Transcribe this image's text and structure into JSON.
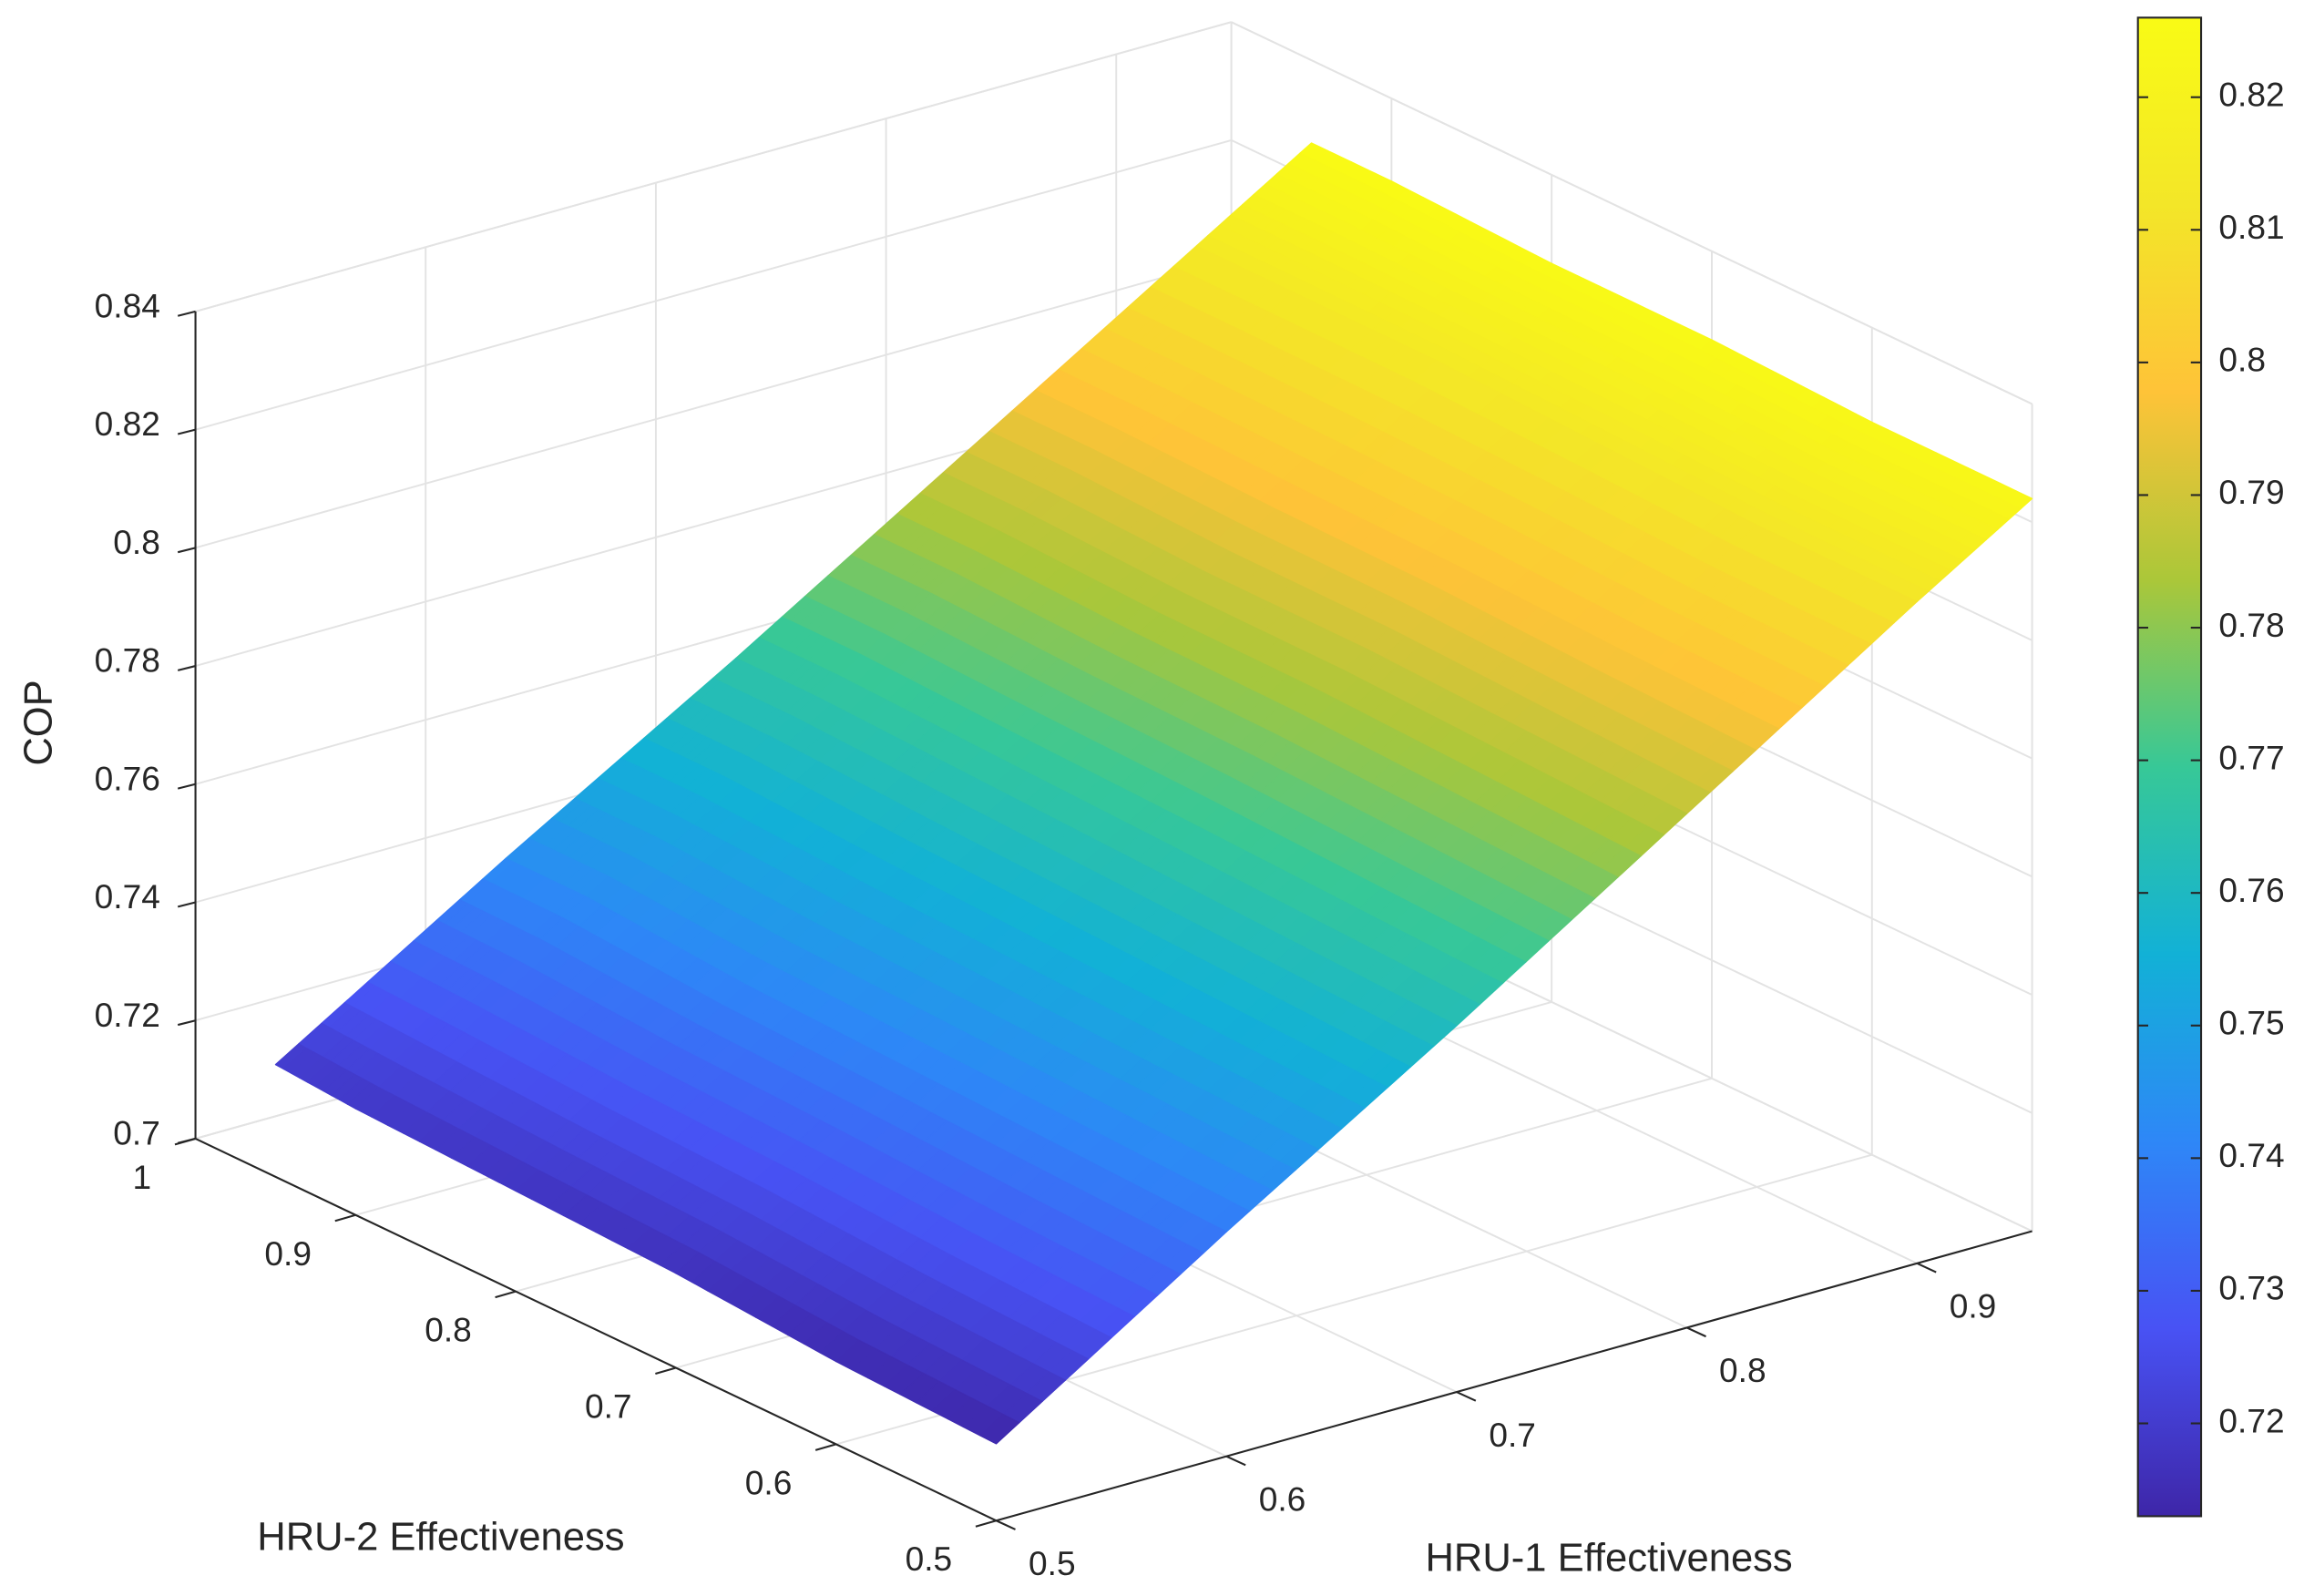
{
  "chart_data": {
    "type": "surface",
    "xlabel": "HRU-1 Effectiveness",
    "ylabel": "HRU-2 Effectiveness",
    "zlabel": "COP",
    "x": [
      0.5,
      0.6,
      0.7,
      0.8,
      0.9,
      0.95
    ],
    "y": [
      0.5,
      0.6,
      0.7,
      0.8,
      0.9,
      0.95
    ],
    "z": [
      [
        0.713,
        0.738,
        0.762,
        0.787,
        0.812,
        0.824
      ],
      [
        0.714,
        0.739,
        0.763,
        0.788,
        0.812,
        0.824
      ],
      [
        0.716,
        0.74,
        0.764,
        0.789,
        0.813,
        0.825
      ],
      [
        0.717,
        0.741,
        0.765,
        0.789,
        0.814,
        0.825
      ],
      [
        0.718,
        0.743,
        0.766,
        0.79,
        0.814,
        0.826
      ],
      [
        0.719,
        0.743,
        0.766,
        0.79,
        0.814,
        0.826
      ]
    ],
    "xlim": [
      0.5,
      0.95
    ],
    "ylim": [
      0.5,
      1
    ],
    "zlim": [
      0.7,
      0.84
    ],
    "xticks": [
      0.5,
      0.6,
      0.7,
      0.8,
      0.9
    ],
    "yticks": [
      0.5,
      0.6,
      0.7,
      0.8,
      0.9,
      1
    ],
    "zticks": [
      0.7,
      0.72,
      0.74,
      0.76,
      0.78,
      0.8,
      0.82,
      0.84
    ],
    "colormap": "parula",
    "clim": [
      0.713,
      0.826
    ],
    "colorbar_ticks": [
      0.72,
      0.73,
      0.74,
      0.75,
      0.76,
      0.77,
      0.78,
      0.79,
      0.8,
      0.81,
      0.82
    ],
    "grid": true
  }
}
